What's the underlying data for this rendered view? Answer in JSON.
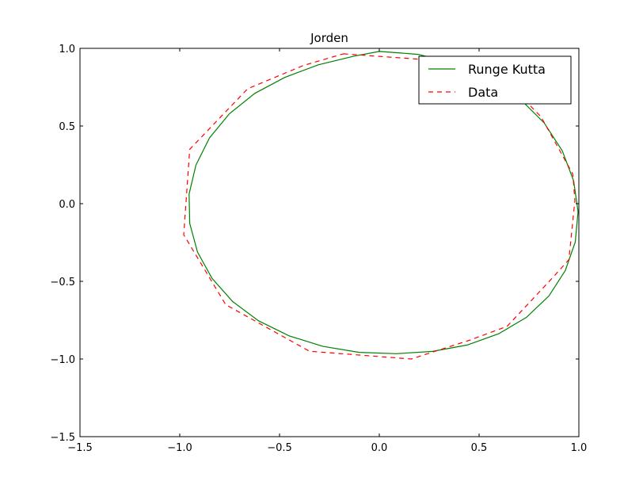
{
  "chart_data": {
    "type": "line",
    "title": "Jorden",
    "xlabel": "",
    "ylabel": "",
    "xlim": [
      -1.5,
      1.0
    ],
    "ylim": [
      -1.5,
      1.0
    ],
    "xticks": [
      -1.5,
      -1.0,
      -0.5,
      0.0,
      0.5,
      1.0
    ],
    "xtick_labels": [
      "−1.5",
      "−1.0",
      "−0.5",
      "0.0",
      "0.5",
      "1.0"
    ],
    "yticks": [
      -1.5,
      -1.0,
      -0.5,
      0.0,
      0.5,
      1.0
    ],
    "ytick_labels": [
      "−1.5",
      "−1.0",
      "−0.5",
      "0.0",
      "0.5",
      "1.0"
    ],
    "grid": false,
    "legend": "top-right",
    "series": [
      {
        "name": "Runge Kutta",
        "style": "solid",
        "color": "#008000",
        "x": [
          0.0,
          0.195,
          0.381,
          0.553,
          0.703,
          0.826,
          0.917,
          0.974,
          0.996,
          0.982,
          0.932,
          0.85,
          0.737,
          0.599,
          0.44,
          0.267,
          0.084,
          -0.101,
          -0.282,
          -0.452,
          -0.605,
          -0.735,
          -0.838,
          -0.911,
          -0.95,
          -0.953,
          -0.919,
          -0.851,
          -0.751,
          -0.624,
          -0.474,
          -0.306,
          -0.126,
          0.0
        ],
        "y": [
          0.98,
          0.961,
          0.901,
          0.806,
          0.677,
          0.52,
          0.34,
          0.147,
          -0.051,
          -0.246,
          -0.43,
          -0.594,
          -0.732,
          -0.837,
          -0.91,
          -0.951,
          -0.966,
          -0.957,
          -0.919,
          -0.851,
          -0.754,
          -0.63,
          -0.481,
          -0.311,
          -0.127,
          0.062,
          0.248,
          0.423,
          0.579,
          0.71,
          0.813,
          0.894,
          0.95,
          0.98
        ]
      },
      {
        "name": "Data",
        "style": "dashed",
        "color": "#ff0000",
        "x": [
          -0.18,
          0.2,
          0.45,
          0.65,
          0.81,
          0.97,
          0.98,
          0.95,
          0.88,
          0.75,
          0.64,
          0.45,
          0.16,
          -0.35,
          -0.77,
          -0.98,
          -0.95,
          -0.66,
          -0.38,
          -0.18
        ],
        "y": [
          0.965,
          0.93,
          0.87,
          0.77,
          0.56,
          0.19,
          0.02,
          -0.36,
          -0.46,
          -0.64,
          -0.79,
          -0.88,
          -1.0,
          -0.95,
          -0.65,
          -0.2,
          0.35,
          0.74,
          0.89,
          0.965
        ]
      }
    ]
  }
}
